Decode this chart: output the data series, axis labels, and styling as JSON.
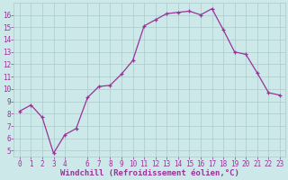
{
  "x": [
    0,
    1,
    2,
    3,
    4,
    5,
    6,
    7,
    8,
    9,
    10,
    11,
    12,
    13,
    14,
    15,
    16,
    17,
    18,
    19,
    20,
    21,
    22,
    23
  ],
  "y": [
    8.2,
    8.7,
    7.7,
    4.8,
    6.3,
    6.8,
    9.3,
    10.2,
    10.3,
    11.2,
    12.3,
    15.1,
    15.6,
    16.1,
    16.2,
    16.3,
    16.0,
    16.5,
    14.8,
    13.0,
    12.8,
    11.3,
    9.7,
    9.5
  ],
  "xlim": [
    -0.5,
    23.5
  ],
  "ylim": [
    4.5,
    17.0
  ],
  "xticks": [
    0,
    1,
    2,
    3,
    4,
    6,
    7,
    8,
    9,
    10,
    11,
    12,
    13,
    14,
    15,
    16,
    17,
    18,
    19,
    20,
    21,
    22,
    23
  ],
  "yticks": [
    5,
    6,
    7,
    8,
    9,
    10,
    11,
    12,
    13,
    14,
    15,
    16
  ],
  "xlabel": "Windchill (Refroidissement éolien,°C)",
  "line_color": "#993399",
  "marker": "+",
  "marker_size": 3,
  "line_width": 0.9,
  "background_color": "#cce8e8",
  "grid_color": "#aacccc",
  "tick_label_color": "#993399",
  "xlabel_color": "#993399",
  "tick_fontsize": 5.5,
  "xlabel_fontsize": 6.5
}
